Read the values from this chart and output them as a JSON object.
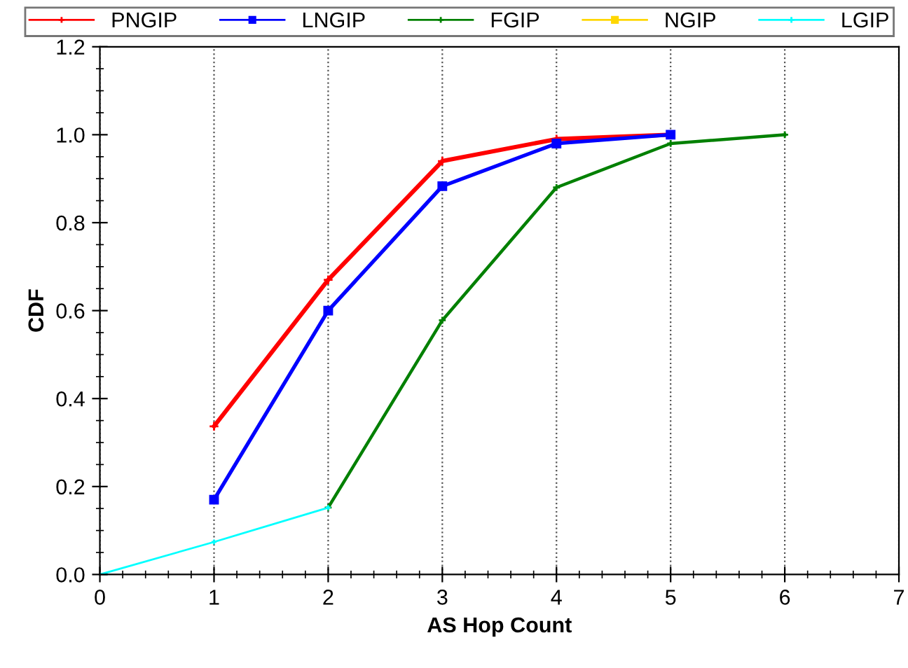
{
  "chart_data": {
    "type": "line",
    "xlabel": "AS Hop Count",
    "ylabel": "CDF",
    "xlim": [
      0,
      7
    ],
    "ylim": [
      0,
      1.2
    ],
    "xticks": [
      0,
      1,
      2,
      3,
      4,
      5,
      6,
      7
    ],
    "yticks": [
      {
        "value": 0,
        "label": "0.0"
      },
      {
        "value": 0.2,
        "label": "0.2"
      },
      {
        "value": 0.4,
        "label": "0.4"
      },
      {
        "value": 0.6,
        "label": "0.6"
      },
      {
        "value": 0.8,
        "label": "0.8"
      },
      {
        "value": 1.0,
        "label": "1.0"
      },
      {
        "value": 1.2,
        "label": "1.2"
      }
    ],
    "grid": "x",
    "legend": "top",
    "line_style": "solid",
    "series": [
      {
        "name": "PNGIP",
        "color": "#ff0000",
        "marker": "cross",
        "x": [
          1,
          2,
          3,
          4,
          5
        ],
        "values": [
          0.337,
          0.67,
          0.94,
          0.99,
          1.0
        ]
      },
      {
        "name": "LNGIP",
        "color": "#0000ff",
        "marker": "square",
        "x": [
          1,
          2,
          3,
          4,
          5
        ],
        "values": [
          0.17,
          0.6,
          0.883,
          0.98,
          1.0
        ]
      },
      {
        "name": "FGIP",
        "color": "#008000",
        "marker": "cross",
        "x": [
          2,
          3,
          4,
          5,
          6
        ],
        "values": [
          0.152,
          0.578,
          0.88,
          0.98,
          1.0
        ]
      },
      {
        "name": "NGIP",
        "color": "#ffd700",
        "marker": "square"
      },
      {
        "name": "LGIP",
        "color": "#00ffff",
        "marker": "cross",
        "x": [
          0,
          1,
          2
        ],
        "values": [
          0,
          0.074,
          0.152
        ]
      }
    ]
  }
}
